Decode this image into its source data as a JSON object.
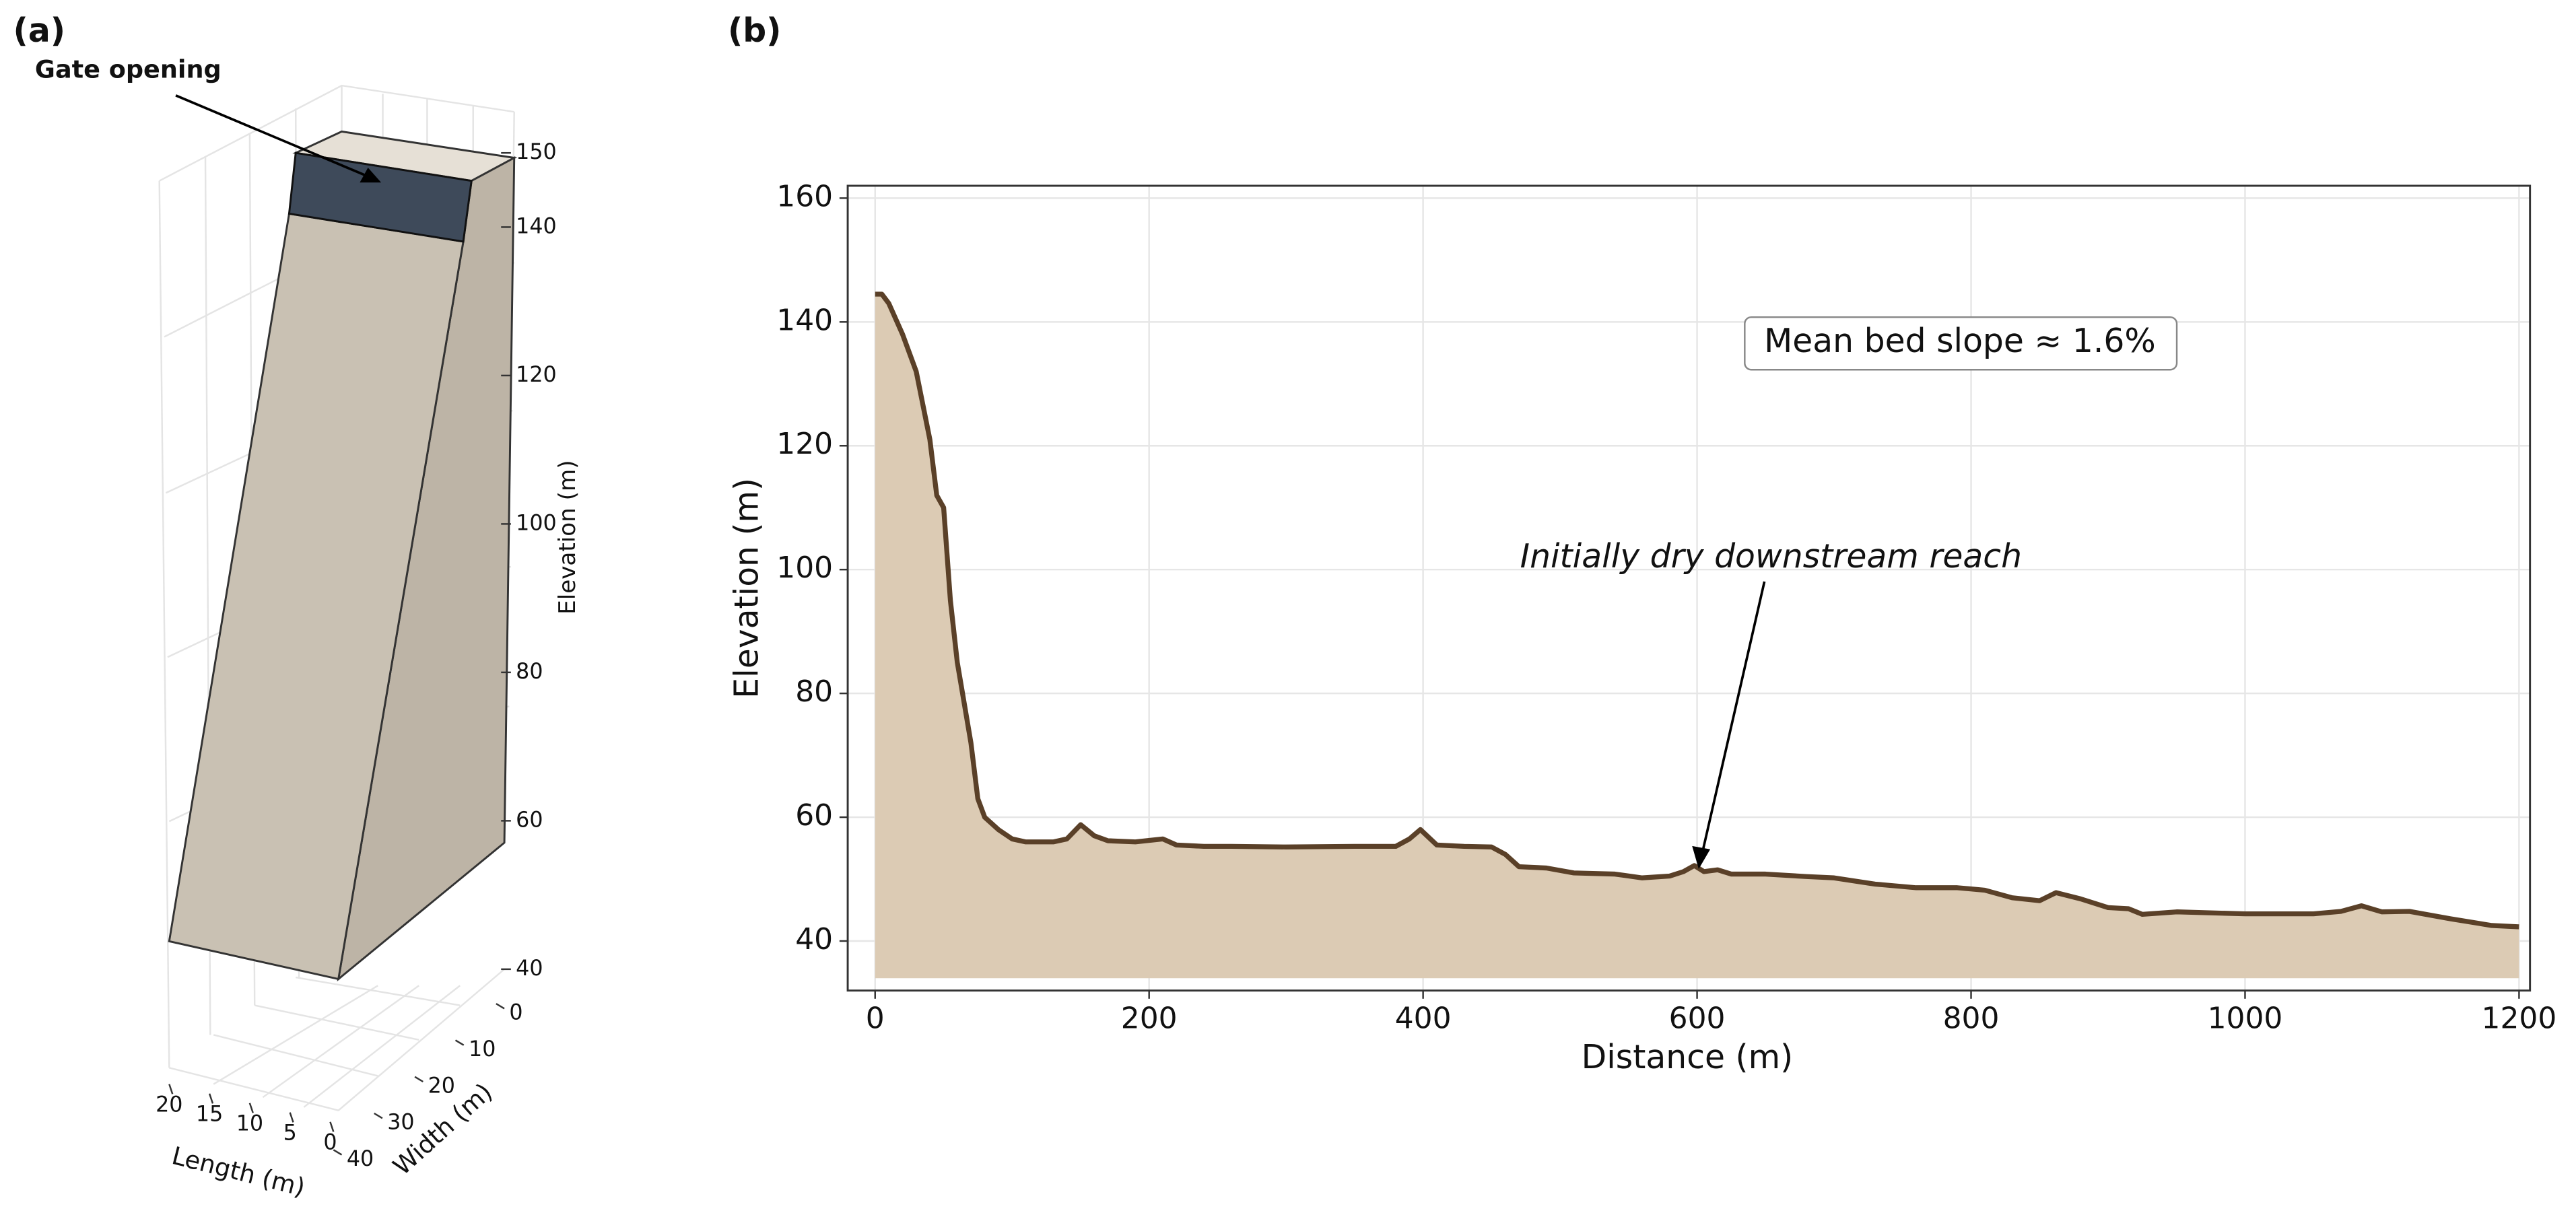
{
  "chart_data": [
    {
      "type": "3d-schematic",
      "panel_label": "(a)",
      "annotation": "Gate opening",
      "xlabel": "Length (m)",
      "ylabel": "Width (m)",
      "zlabel": "Elevation (m)",
      "xlim": [
        0,
        20
      ],
      "xticks": [
        20,
        15,
        10,
        5,
        0
      ],
      "ylim": [
        0,
        40
      ],
      "yticks": [
        0,
        10,
        20,
        30,
        40
      ],
      "zlim": [
        40,
        150
      ],
      "zticks": [
        40,
        60,
        80,
        100,
        120,
        140,
        150
      ]
    },
    {
      "type": "area",
      "panel_label": "(b)",
      "xlabel": "Distance (m)",
      "ylabel": "Elevation (m)",
      "annotations": [
        "Mean bed slope ≈ 1.6%",
        "Initially dry downstream reach"
      ],
      "color": "#5a4028",
      "fill_color": "#dccbb4",
      "fill_base": 34,
      "grid": true,
      "xlim": [
        -20,
        1208
      ],
      "xticks": [
        0,
        200,
        400,
        600,
        800,
        1000,
        1200
      ],
      "ylim": [
        32,
        162
      ],
      "yticks": [
        40,
        60,
        80,
        100,
        120,
        140,
        160
      ],
      "x": [
        0,
        5,
        10,
        20,
        30,
        40,
        45,
        50,
        55,
        60,
        70,
        75,
        80,
        90,
        100,
        110,
        130,
        140,
        150,
        160,
        170,
        190,
        210,
        220,
        240,
        260,
        300,
        350,
        380,
        390,
        398,
        410,
        430,
        450,
        460,
        470,
        490,
        510,
        540,
        560,
        580,
        590,
        598,
        605,
        615,
        625,
        650,
        680,
        700,
        730,
        760,
        790,
        810,
        830,
        850,
        862,
        880,
        900,
        915,
        925,
        950,
        1000,
        1050,
        1070,
        1085,
        1100,
        1120,
        1150,
        1180,
        1200
      ],
      "values": [
        144.5,
        144.5,
        143,
        138,
        132,
        121,
        112,
        110,
        95,
        85,
        72,
        63,
        60,
        58,
        56.5,
        56,
        56,
        56.5,
        58.8,
        57,
        56.2,
        56,
        56.5,
        55.5,
        55.3,
        55.3,
        55.2,
        55.3,
        55.3,
        56.5,
        58,
        55.5,
        55.3,
        55.2,
        54,
        52,
        51.8,
        51,
        50.8,
        50.2,
        50.5,
        51.2,
        52.2,
        51.2,
        51.5,
        50.8,
        50.8,
        50.4,
        50.2,
        49.2,
        48.6,
        48.6,
        48.2,
        47,
        46.5,
        47.8,
        46.8,
        45.4,
        45.2,
        44.3,
        44.7,
        44.4,
        44.4,
        44.8,
        45.7,
        44.7,
        44.8,
        43.6,
        42.5,
        42.3
      ]
    }
  ]
}
